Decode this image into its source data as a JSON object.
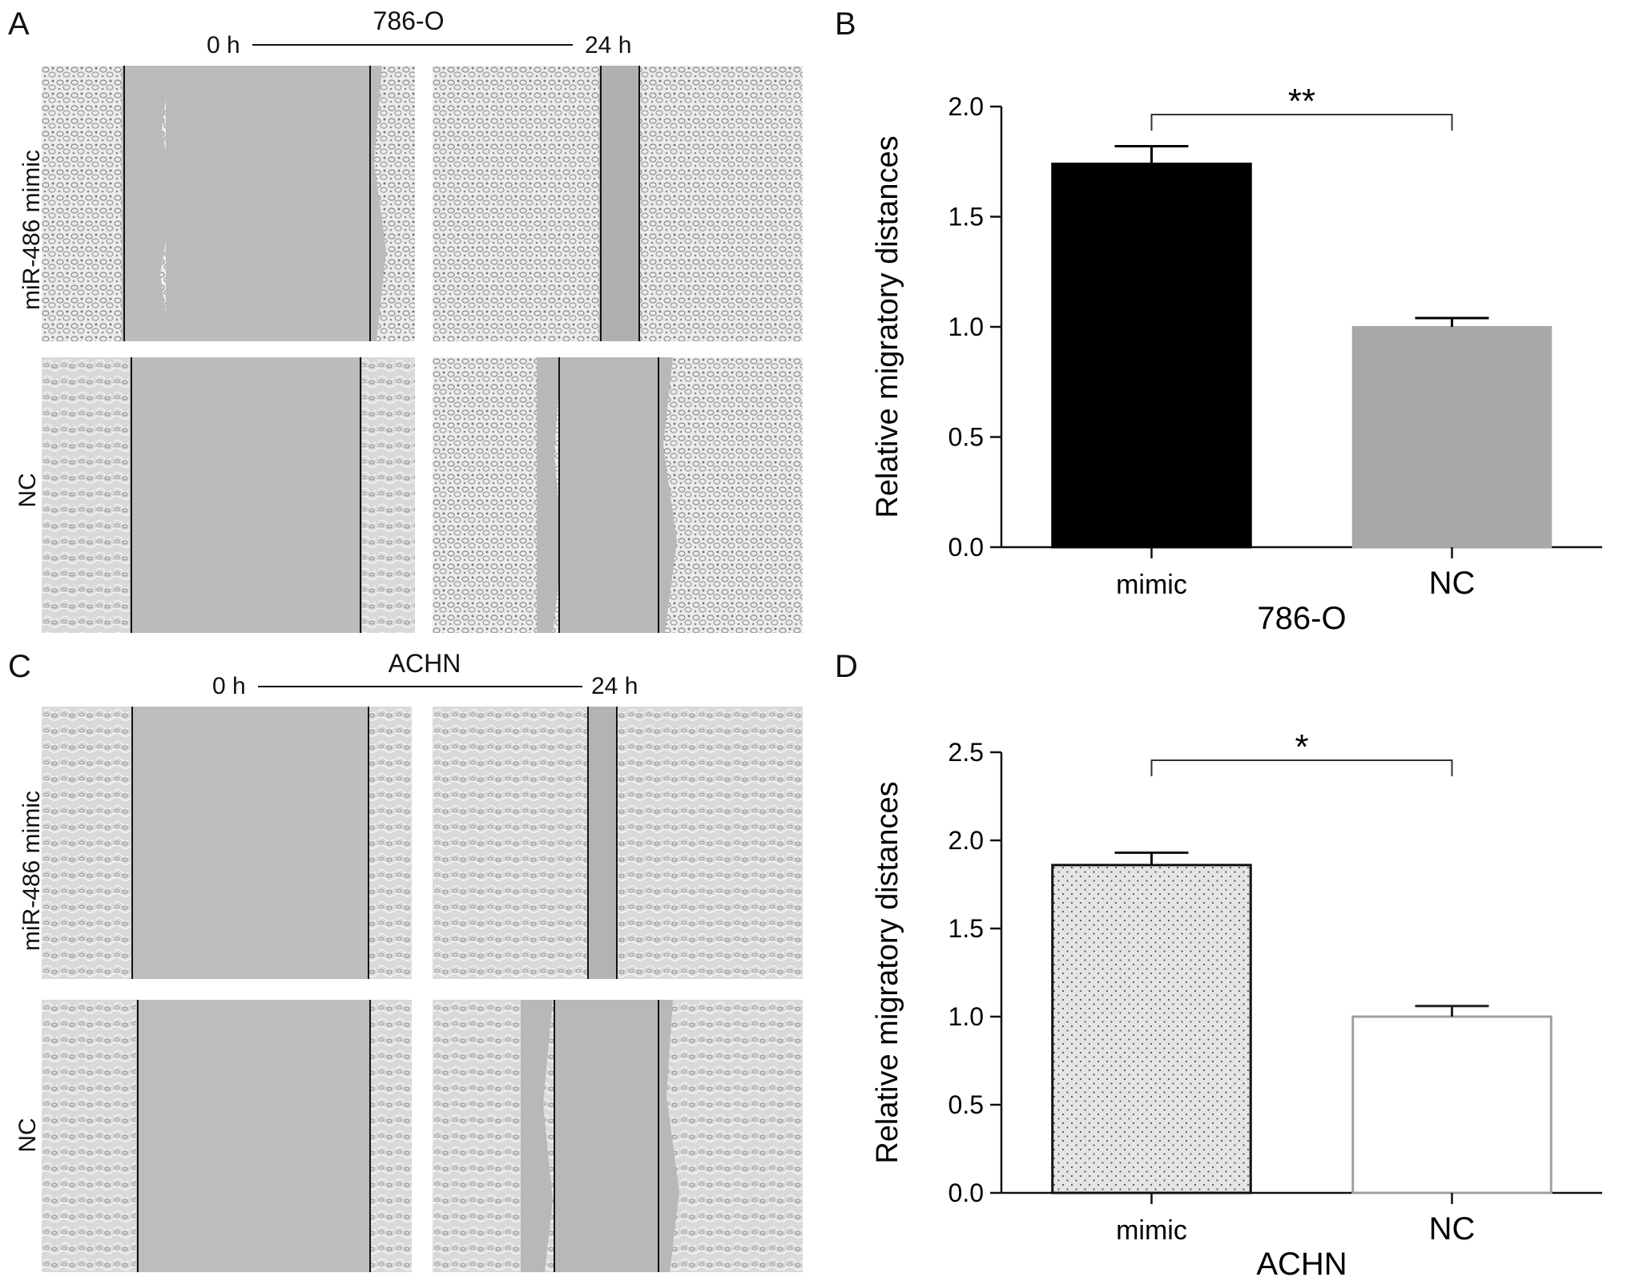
{
  "panels": {
    "A": {
      "letter": "A",
      "cell_line": "786-O",
      "time_start": "0 h",
      "time_end": "24 h",
      "row_labels": [
        "miR-486  mimic",
        "NC"
      ]
    },
    "B": {
      "letter": "B"
    },
    "C": {
      "letter": "C",
      "cell_line": "ACHN",
      "time_start": "0 h",
      "time_end": "24 h",
      "row_labels": [
        "miR-486  mimic",
        "NC"
      ]
    },
    "D": {
      "letter": "D"
    }
  },
  "colors": {
    "micro_bg": "#b9b9b9",
    "micro_cells": "#e6e6e6",
    "bar_black": "#000000",
    "bar_gray": "#a8a8a8",
    "bar_dotted_fill": "#e4e4e4"
  },
  "chart_data": [
    {
      "type": "bar",
      "panel": "B",
      "categories": [
        "mimic",
        "NC"
      ],
      "values": [
        1.74,
        1.0
      ],
      "errors": [
        0.08,
        0.04
      ],
      "ylabel": "Relative migratory distances",
      "xlabel": "786-O",
      "ylim": [
        0,
        2.0
      ],
      "yticks": [
        "0.0",
        "0.5",
        "1.0",
        "1.5",
        "2.0"
      ],
      "significance": "**"
    },
    {
      "type": "bar",
      "panel": "D",
      "categories": [
        "mimic",
        "NC"
      ],
      "values": [
        1.86,
        1.0
      ],
      "errors": [
        0.07,
        0.06
      ],
      "ylabel": "Relative migratory distances",
      "xlabel": "ACHN",
      "ylim": [
        0,
        2.5
      ],
      "yticks": [
        "0.0",
        "0.5",
        "1.0",
        "1.5",
        "2.0",
        "2.5"
      ],
      "significance": "*"
    }
  ]
}
